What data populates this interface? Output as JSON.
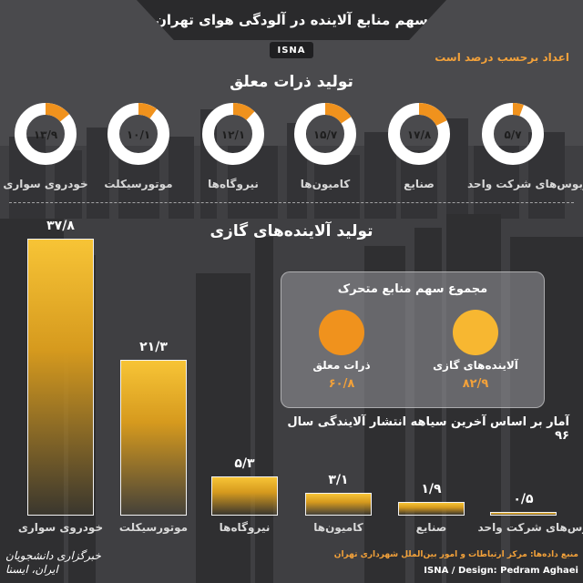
{
  "header": {
    "title": "سهم منابع آلاینده در آلودگی هوای تهران",
    "agency": "ISNA",
    "unit_note": "اعداد برحسب درصد است"
  },
  "particles": {
    "title": "تولید ذرات معلق"
  },
  "gases": {
    "title": "تولید آلاینده‌های گازی"
  },
  "mobile_total": {
    "title": "مجموع سهم منابع متحرک",
    "items": [
      {
        "label": "آلاینده‌های گازی",
        "value": "۸۲/۹",
        "color": "#f7b731"
      },
      {
        "label": "ذرات معلق",
        "value": "۶۰/۸",
        "color": "#f0921d"
      }
    ]
  },
  "footnote": "آمار بر اساس آخرین سیاهه انتشار آلایندگی سال ۹۶",
  "footer": {
    "source": "منبع داده‌ها: مرکز ارتباطات و امور بین‌الملل شهرداری تهران",
    "design": "ISNA / Design: Pedram Aghaei",
    "agency_logo": "خبرگزاری دانشجویان ایران، ایسنا"
  },
  "colors": {
    "accent_orange": "#f0921d",
    "accent_yellow": "#f7c436",
    "donut_ring": "#ffffff",
    "background": "#3f3f42"
  },
  "chart_data": [
    {
      "type": "pie",
      "title": "تولید ذرات معلق",
      "categories": [
        "اتوبوس‌های شرکت واحد",
        "صنایع",
        "کامیون‌ها",
        "نیروگاه‌ها",
        "موتورسیکلت",
        "خودروی سواری"
      ],
      "value_labels": [
        "۵/۷",
        "۱۷/۸",
        "۱۵/۷",
        "۱۲/۱",
        "۱۰/۱",
        "۱۳/۹"
      ],
      "values": [
        5.7,
        17.8,
        15.7,
        12.1,
        10.1,
        13.9
      ]
    },
    {
      "type": "bar",
      "title": "تولید آلاینده‌های گازی",
      "categories": [
        "خودروی سواری",
        "موتورسیکلت",
        "نیروگاه‌ها",
        "کامیون‌ها",
        "صنایع",
        "اتوبوس‌های شرکت واحد"
      ],
      "value_labels": [
        "۳۷/۸",
        "۲۱/۳",
        "۵/۳",
        "۳/۱",
        "۱/۹",
        "۰/۵"
      ],
      "values": [
        37.8,
        21.3,
        5.3,
        3.1,
        1.9,
        0.5
      ]
    }
  ]
}
